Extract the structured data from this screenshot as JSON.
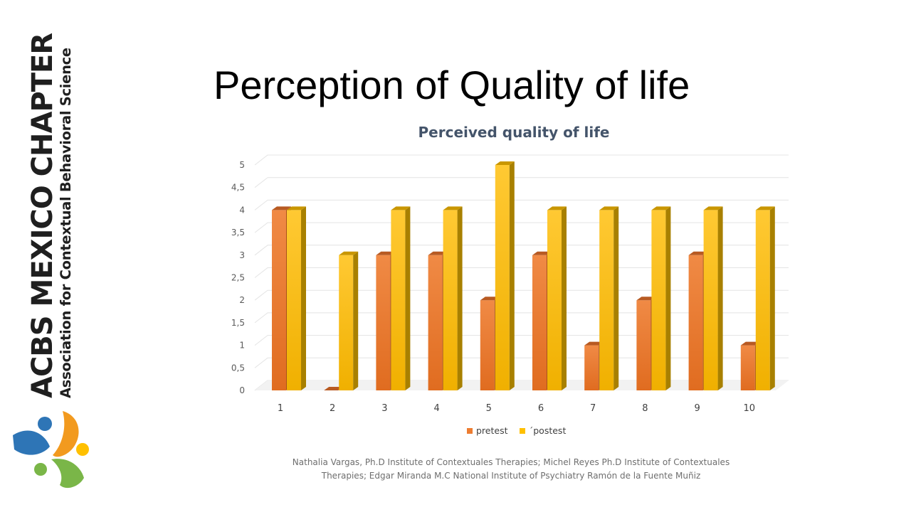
{
  "slide": {
    "title": "Perception of Quality of life",
    "logo_main": "ACBS MEXICO CHAPTER",
    "logo_sub": "Association for Contextual Behavioral Science",
    "footnote": "Nathalia Vargas, Ph.D  Institute of Contextuales Therapies; Michel Reyes  Ph.D  Institute of Contextuales Therapies; Edgar Miranda M.C National Institute of Psychiatry Ramón de la Fuente Muñiz"
  },
  "chart_data": {
    "type": "bar",
    "title": "Perceived quality of life",
    "categories": [
      "1",
      "2",
      "3",
      "4",
      "5",
      "6",
      "7",
      "8",
      "9",
      "10"
    ],
    "series": [
      {
        "name": "pretest",
        "values": [
          4,
          0,
          3,
          3,
          2,
          3,
          1,
          2,
          3,
          1
        ],
        "color": "#ed7d31"
      },
      {
        "name": "´postest",
        "values": [
          4,
          3,
          4,
          4,
          5,
          4,
          4,
          4,
          4,
          4
        ],
        "color": "#ffc000"
      }
    ],
    "ylim": [
      0,
      5
    ],
    "yticks": [
      "0",
      "0,5",
      "1",
      "1,5",
      "2",
      "2,5",
      "3",
      "3,5",
      "4",
      "4,5",
      "5"
    ],
    "grid": true,
    "legend_position": "bottom",
    "style": "3d-clustered-column"
  },
  "logo_colors": [
    "#2e75b6",
    "#f29a1f",
    "#7ab648",
    "#ffc000"
  ]
}
